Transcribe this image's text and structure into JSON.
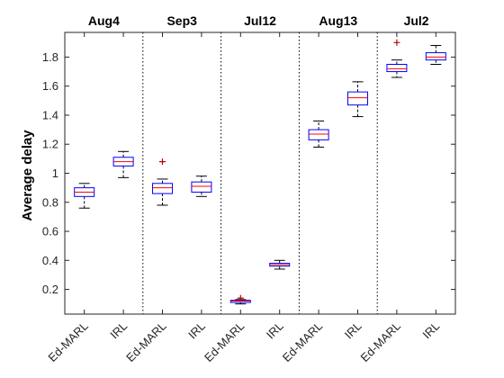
{
  "chart_data": {
    "type": "boxplot",
    "title": "",
    "xlabel": "",
    "ylabel": "Average delay",
    "ylim": [
      0.03,
      1.97
    ],
    "yticks": [
      0.2,
      0.4,
      0.6,
      0.8,
      1,
      1.2,
      1.4,
      1.6,
      1.8
    ],
    "ytick_labels": [
      "0.2",
      "0.4",
      "0.6",
      "0.8",
      "1",
      "1.2",
      "1.4",
      "1.6",
      "1.8"
    ],
    "grid": false,
    "colors": {
      "box": "#0000ff",
      "median": "#ff0000",
      "whisker": "#000000",
      "outlier": "#c00000",
      "separator": "#000000"
    },
    "groups": [
      "Aug4",
      "Sep3",
      "Jul12",
      "Aug13",
      "Jul2"
    ],
    "categories": [
      "Ed-MARL",
      "IRL"
    ],
    "boxes": [
      {
        "group": "Aug4",
        "label": "Ed-MARL",
        "whisker_low": 0.76,
        "q1": 0.84,
        "median": 0.87,
        "q3": 0.9,
        "whisker_high": 0.93,
        "outliers": []
      },
      {
        "group": "Aug4",
        "label": "IRL",
        "whisker_low": 0.97,
        "q1": 1.05,
        "median": 1.08,
        "q3": 1.11,
        "whisker_high": 1.15,
        "outliers": []
      },
      {
        "group": "Sep3",
        "label": "Ed-MARL",
        "whisker_low": 0.78,
        "q1": 0.86,
        "median": 0.9,
        "q3": 0.93,
        "whisker_high": 0.96,
        "outliers": [
          1.08
        ]
      },
      {
        "group": "Sep3",
        "label": "IRL",
        "whisker_low": 0.84,
        "q1": 0.87,
        "median": 0.91,
        "q3": 0.94,
        "whisker_high": 0.98,
        "outliers": []
      },
      {
        "group": "Jul12",
        "label": "Ed-MARL",
        "whisker_low": 0.1,
        "q1": 0.11,
        "median": 0.12,
        "q3": 0.125,
        "whisker_high": 0.13,
        "outliers": [
          0.14
        ]
      },
      {
        "group": "Jul12",
        "label": "IRL",
        "whisker_low": 0.34,
        "q1": 0.36,
        "median": 0.37,
        "q3": 0.38,
        "whisker_high": 0.4,
        "outliers": []
      },
      {
        "group": "Aug13",
        "label": "Ed-MARL",
        "whisker_low": 1.18,
        "q1": 1.23,
        "median": 1.27,
        "q3": 1.3,
        "whisker_high": 1.36,
        "outliers": []
      },
      {
        "group": "Aug13",
        "label": "IRL",
        "whisker_low": 1.39,
        "q1": 1.47,
        "median": 1.52,
        "q3": 1.56,
        "whisker_high": 1.63,
        "outliers": []
      },
      {
        "group": "Jul2",
        "label": "Ed-MARL",
        "whisker_low": 1.66,
        "q1": 1.7,
        "median": 1.72,
        "q3": 1.75,
        "whisker_high": 1.78,
        "outliers": [
          1.9
        ]
      },
      {
        "group": "Jul2",
        "label": "IRL",
        "whisker_low": 1.75,
        "q1": 1.78,
        "median": 1.8,
        "q3": 1.83,
        "whisker_high": 1.88,
        "outliers": []
      }
    ]
  }
}
